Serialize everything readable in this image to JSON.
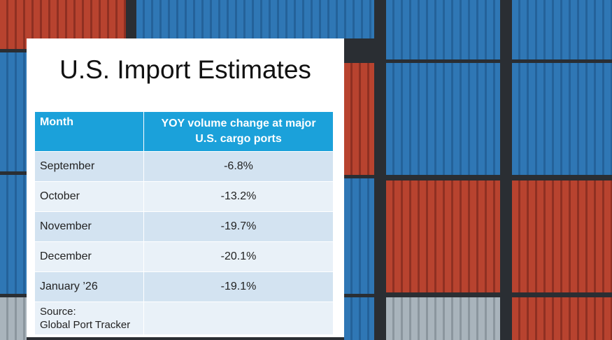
{
  "title": "U.S. Import Estimates",
  "table": {
    "header": [
      "Month",
      "YOY volume change at major U.S. cargo ports"
    ],
    "rows": [
      [
        "September",
        "-6.8%"
      ],
      [
        "October",
        "-13.2%"
      ],
      [
        "November",
        "-19.7%"
      ],
      [
        "December",
        "-20.1%"
      ],
      [
        "January ’26",
        "-19.1%"
      ]
    ],
    "source": "Source:\nGlobal Port Tracker"
  }
}
